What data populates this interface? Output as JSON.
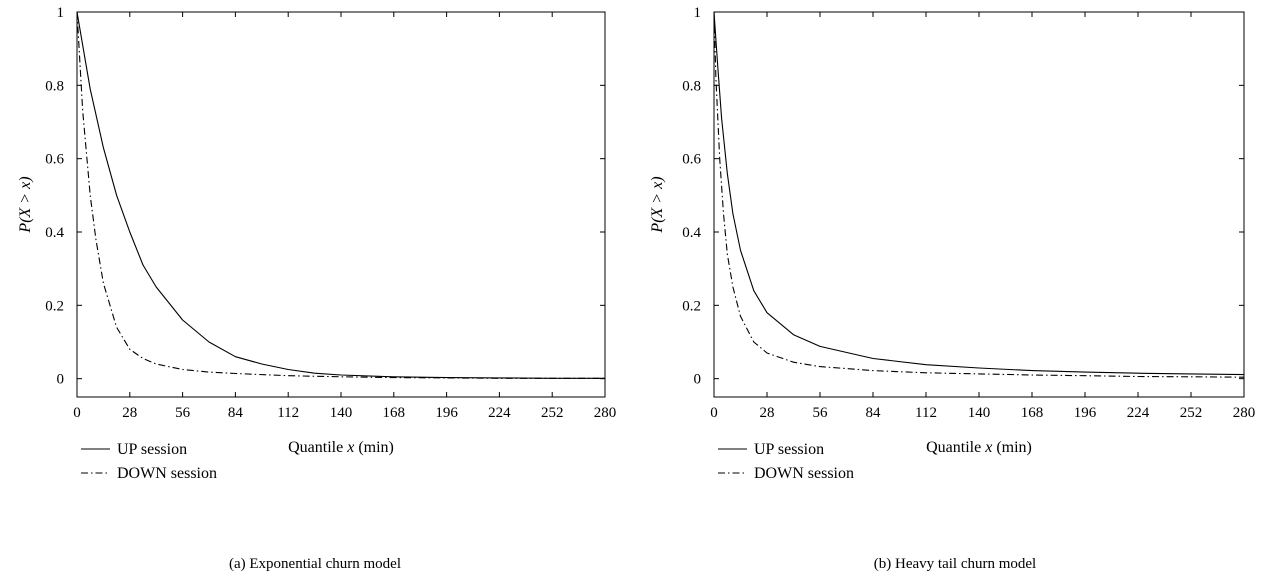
{
  "chart_data": [
    {
      "type": "line",
      "caption": "(a)  Exponential churn model",
      "xlabel_prefix": "Quantile ",
      "xlabel_var": "x",
      "xlabel_suffix": " (min)",
      "ylabel": "P(X > x)",
      "xlim": [
        0,
        280
      ],
      "ylim": [
        -0.05,
        1
      ],
      "xticks": [
        0,
        28,
        56,
        84,
        112,
        140,
        168,
        196,
        224,
        252,
        280
      ],
      "yticks": [
        0,
        0.2,
        0.4,
        0.6,
        0.8,
        1
      ],
      "ytick_labels": [
        "0",
        "0.2",
        "0.4",
        "0.6",
        "0.8",
        "1"
      ],
      "series": [
        {
          "name": "UP session",
          "style": "solid",
          "x": [
            0,
            7,
            14,
            21,
            28,
            35,
            42,
            56,
            70,
            84,
            98,
            112,
            126,
            140,
            168,
            196,
            224,
            252,
            280
          ],
          "y": [
            1,
            0.79,
            0.63,
            0.5,
            0.4,
            0.31,
            0.25,
            0.16,
            0.1,
            0.06,
            0.04,
            0.025,
            0.015,
            0.01,
            0.005,
            0.003,
            0.002,
            0.001,
            0.001
          ]
        },
        {
          "name": "DOWN session",
          "style": "dashdot",
          "x": [
            0,
            3,
            7,
            10,
            14,
            21,
            28,
            35,
            42,
            56,
            70,
            84,
            112,
            140,
            168,
            196,
            224,
            252,
            280
          ],
          "y": [
            1,
            0.73,
            0.5,
            0.38,
            0.26,
            0.14,
            0.08,
            0.055,
            0.04,
            0.025,
            0.018,
            0.014,
            0.008,
            0.005,
            0.003,
            0.002,
            0.001,
            0.001,
            0.001
          ]
        }
      ]
    },
    {
      "type": "line",
      "caption": "(b)  Heavy tail churn model",
      "xlabel_prefix": "Quantile ",
      "xlabel_var": "x",
      "xlabel_suffix": " (min)",
      "ylabel": "P(X > x)",
      "xlim": [
        0,
        280
      ],
      "ylim": [
        -0.05,
        1
      ],
      "xticks": [
        0,
        28,
        56,
        84,
        112,
        140,
        168,
        196,
        224,
        252,
        280
      ],
      "yticks": [
        0,
        0.2,
        0.4,
        0.6,
        0.8,
        1
      ],
      "ytick_labels": [
        "0",
        "0.2",
        "0.4",
        "0.6",
        "0.8",
        "1"
      ],
      "series": [
        {
          "name": "UP session",
          "style": "solid",
          "x": [
            0,
            2,
            4,
            7,
            10,
            14,
            21,
            28,
            42,
            56,
            84,
            112,
            140,
            168,
            196,
            224,
            252,
            280
          ],
          "y": [
            1,
            0.85,
            0.71,
            0.56,
            0.45,
            0.35,
            0.24,
            0.18,
            0.12,
            0.088,
            0.055,
            0.038,
            0.029,
            0.022,
            0.018,
            0.015,
            0.013,
            0.011
          ]
        },
        {
          "name": "DOWN session",
          "style": "dashdot",
          "x": [
            0,
            1,
            3,
            5,
            7,
            10,
            14,
            21,
            28,
            42,
            56,
            84,
            112,
            140,
            168,
            196,
            224,
            252,
            280
          ],
          "y": [
            1,
            0.82,
            0.6,
            0.45,
            0.34,
            0.25,
            0.17,
            0.1,
            0.07,
            0.045,
            0.033,
            0.022,
            0.016,
            0.013,
            0.01,
            0.008,
            0.006,
            0.005,
            0.004
          ]
        }
      ]
    }
  ]
}
